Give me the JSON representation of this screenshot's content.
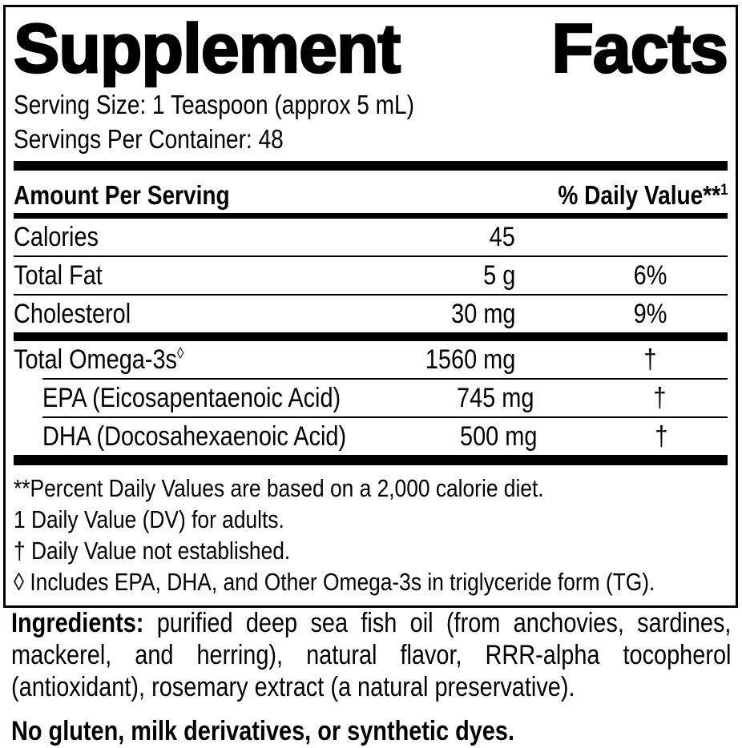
{
  "title": {
    "word1": "Supplement",
    "word2": "Facts"
  },
  "serving": {
    "size_line": "Serving Size: 1 Teaspoon (approx 5 mL)",
    "count_line": "Servings Per Container: 48"
  },
  "table": {
    "amount_header": "Amount Per Serving",
    "dv_header": "% Daily Value**",
    "dv_header_sup": "1",
    "sections": [
      {
        "rows": [
          {
            "name": "Calories",
            "sup": "",
            "amount": "45",
            "dv": "",
            "indent": false,
            "sep": "none"
          },
          {
            "name": "Total Fat",
            "sup": "",
            "amount": "5 g",
            "dv": "6%",
            "indent": false,
            "sep": "full"
          },
          {
            "name": "Cholesterol",
            "sup": "",
            "amount": "30 mg",
            "dv": "9%",
            "indent": false,
            "sep": "full"
          }
        ]
      },
      {
        "rows": [
          {
            "name": "Total Omega-3s",
            "sup": "◊",
            "amount": "1560 mg",
            "dv": "†",
            "indent": false,
            "sep": "none"
          },
          {
            "name": "EPA (Eicosapentaenoic Acid)",
            "sup": "",
            "amount": "745 mg",
            "dv": "†",
            "indent": true,
            "sep": "indent"
          },
          {
            "name": "DHA (Docosahexaenoic Acid)",
            "sup": "",
            "amount": "500 mg",
            "dv": "†",
            "indent": true,
            "sep": "indent"
          }
        ]
      }
    ]
  },
  "footnotes": [
    "**Percent Daily Values are based on a 2,000 calorie diet.",
    "1 Daily Value (DV) for adults.",
    "† Daily Value not established.",
    "◊ Includes EPA, DHA, and Other Omega-3s in triglyceride form (TG)."
  ],
  "ingredients": {
    "label": "Ingredients:",
    "text": "purified deep sea fish oil (from anchovies, sardines, mackerel, and herring), natural flavor, RRR-alpha tocopherol (antioxidant), rosemary extract (a natural preservative)."
  },
  "allergen_statement": "No gluten, milk derivatives, or synthetic dyes.",
  "colors": {
    "ink": "#000000",
    "background": "#ffffff"
  }
}
